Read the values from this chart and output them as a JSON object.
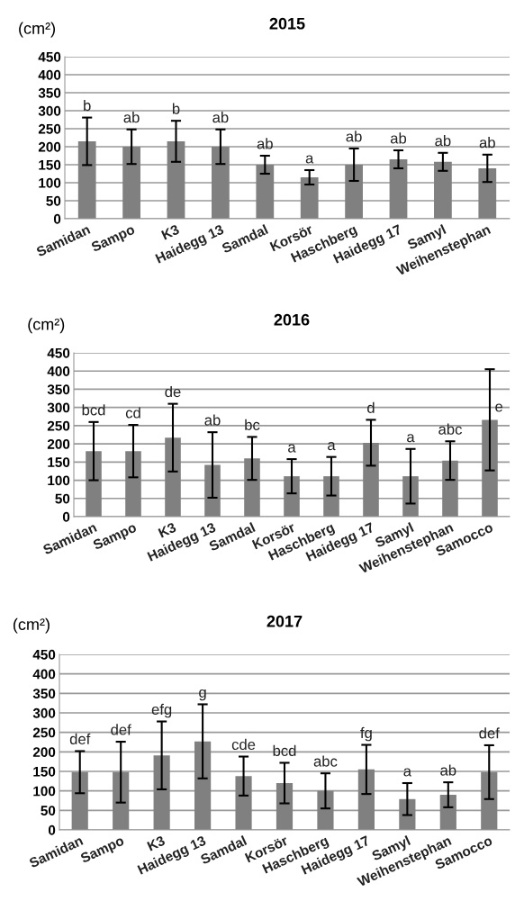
{
  "chart_data": [
    {
      "type": "bar",
      "title": "2015",
      "ylabel": "(cm²)",
      "color": "#808080",
      "ylim": [
        0,
        450
      ],
      "yticks": [
        0,
        50,
        100,
        150,
        200,
        250,
        300,
        350,
        400,
        450
      ],
      "grid": "y",
      "categories": [
        "Samidan",
        "Sampo",
        "K3",
        "Haidegg 13",
        "Samdal",
        "Korsör",
        "Haschberg",
        "Haidegg 17",
        "Samyl",
        "Weihenstephan"
      ],
      "values": [
        215,
        200,
        215,
        200,
        150,
        115,
        150,
        165,
        158,
        140
      ],
      "errors": [
        66,
        48,
        57,
        48,
        25,
        20,
        45,
        25,
        25,
        38
      ],
      "value_labels": [
        "b",
        "ab",
        "b",
        "ab",
        "ab",
        "a",
        "ab",
        "ab",
        "ab",
        "ab"
      ]
    },
    {
      "type": "bar",
      "title": "2016",
      "ylabel": "(cm²)",
      "color": "#808080",
      "ylim": [
        0,
        450
      ],
      "yticks": [
        0,
        50,
        100,
        150,
        200,
        250,
        300,
        350,
        400,
        450
      ],
      "grid": "y",
      "categories": [
        "Samidan",
        "Sampo",
        "K3",
        "Haidegg 13",
        "Samdal",
        "Korsör",
        "Haschberg",
        "Haidegg 17",
        "Samyl",
        "Weihenstephan",
        "Samocco"
      ],
      "values": [
        180,
        180,
        217,
        142,
        160,
        111,
        111,
        203,
        111,
        154,
        266
      ],
      "errors": [
        80,
        72,
        93,
        90,
        59,
        47,
        53,
        63,
        75,
        53,
        139
      ],
      "value_labels": [
        "bcd",
        "cd",
        "de",
        "ab",
        "bc",
        "a",
        "a",
        "d",
        "a",
        "abc",
        "e"
      ]
    },
    {
      "type": "bar",
      "title": "2017",
      "ylabel": "(cm²)",
      "color": "#808080",
      "ylim": [
        0,
        450
      ],
      "yticks": [
        0,
        50,
        100,
        150,
        200,
        250,
        300,
        350,
        400,
        450
      ],
      "grid": "y",
      "categories": [
        "Samidan",
        "Sampo",
        "K3",
        "Haidegg 13",
        "Samdal",
        "Korsör",
        "Haschberg",
        "Haidegg 17",
        "Samyl",
        "Weihenstephan",
        "Samocco"
      ],
      "values": [
        148,
        148,
        191,
        227,
        138,
        120,
        100,
        155,
        79,
        90,
        148
      ],
      "errors": [
        54,
        78,
        87,
        95,
        50,
        52,
        45,
        63,
        41,
        32,
        69
      ],
      "value_labels": [
        "def",
        "def",
        "efg",
        "g",
        "cde",
        "bcd",
        "abc",
        "fg",
        "a",
        "ab",
        "def"
      ]
    }
  ]
}
